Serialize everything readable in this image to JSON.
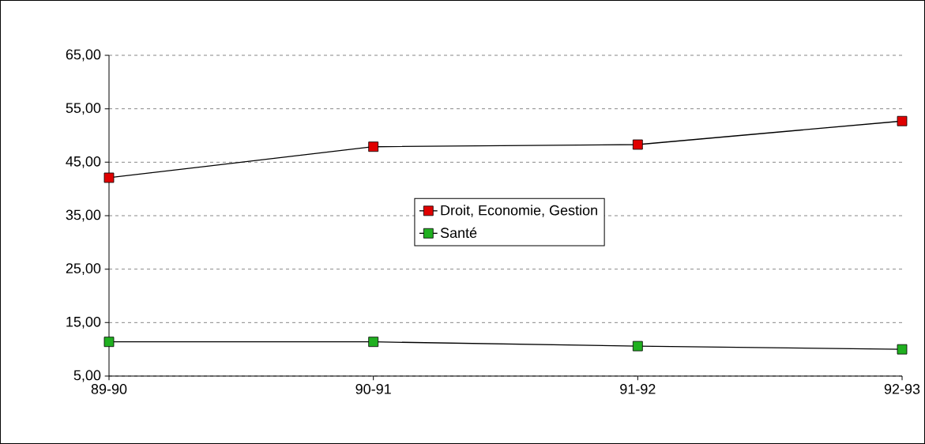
{
  "chart_data": {
    "type": "line",
    "categories": [
      "89-90",
      "90-91",
      "91-92",
      "92-93"
    ],
    "series": [
      {
        "name": "Droit, Economie, Gestion",
        "color": "#e00000",
        "values": [
          42.1,
          47.9,
          48.3,
          52.7
        ]
      },
      {
        "name": "Santé",
        "color": "#20b020",
        "values": [
          11.4,
          11.4,
          10.6,
          10.0
        ]
      }
    ],
    "ylim": [
      5,
      65
    ],
    "yticks": [
      {
        "value": 5,
        "label": "5,00"
      },
      {
        "value": 15,
        "label": "15,00"
      },
      {
        "value": 25,
        "label": "25,00"
      },
      {
        "value": 35,
        "label": "35,00"
      },
      {
        "value": 45,
        "label": "45,00"
      },
      {
        "value": 55,
        "label": "55,00"
      },
      {
        "value": 65,
        "label": "65,00"
      }
    ],
    "grid": "y",
    "legend": "center",
    "marker": "square",
    "line_style": "solid"
  }
}
